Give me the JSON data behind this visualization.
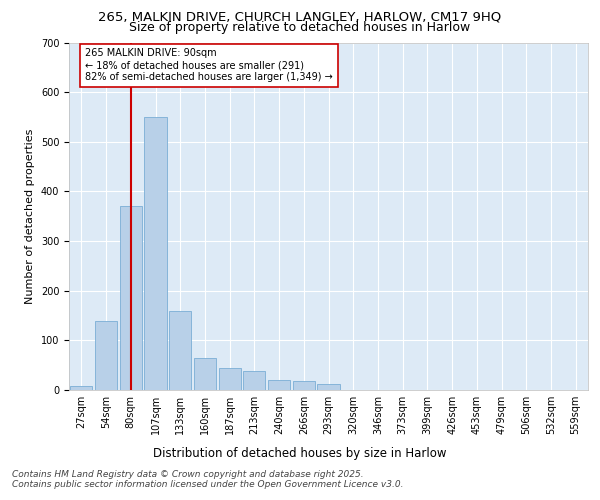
{
  "title_line1": "265, MALKIN DRIVE, CHURCH LANGLEY, HARLOW, CM17 9HQ",
  "title_line2": "Size of property relative to detached houses in Harlow",
  "xlabel": "Distribution of detached houses by size in Harlow",
  "ylabel": "Number of detached properties",
  "categories": [
    "27sqm",
    "54sqm",
    "80sqm",
    "107sqm",
    "133sqm",
    "160sqm",
    "187sqm",
    "213sqm",
    "240sqm",
    "266sqm",
    "293sqm",
    "320sqm",
    "346sqm",
    "373sqm",
    "399sqm",
    "426sqm",
    "453sqm",
    "479sqm",
    "506sqm",
    "532sqm",
    "559sqm"
  ],
  "values": [
    8,
    140,
    370,
    550,
    160,
    65,
    45,
    38,
    20,
    18,
    12,
    0,
    0,
    0,
    0,
    0,
    0,
    0,
    0,
    0,
    0
  ],
  "bar_color": "#b8d0e8",
  "bar_edge_color": "#7aaed6",
  "vline_x": 2,
  "vline_color": "#cc0000",
  "annotation_text": "265 MALKIN DRIVE: 90sqm\n← 18% of detached houses are smaller (291)\n82% of semi-detached houses are larger (1,349) →",
  "annotation_box_color": "#ffffff",
  "annotation_box_edge": "#cc0000",
  "ylim": [
    0,
    700
  ],
  "yticks": [
    0,
    100,
    200,
    300,
    400,
    500,
    600,
    700
  ],
  "plot_bg_color": "#ddeaf6",
  "footer_line1": "Contains HM Land Registry data © Crown copyright and database right 2025.",
  "footer_line2": "Contains public sector information licensed under the Open Government Licence v3.0.",
  "title_fontsize": 9.5,
  "subtitle_fontsize": 9,
  "axis_label_fontsize": 8,
  "tick_fontsize": 7,
  "annotation_fontsize": 7,
  "footer_fontsize": 6.5
}
